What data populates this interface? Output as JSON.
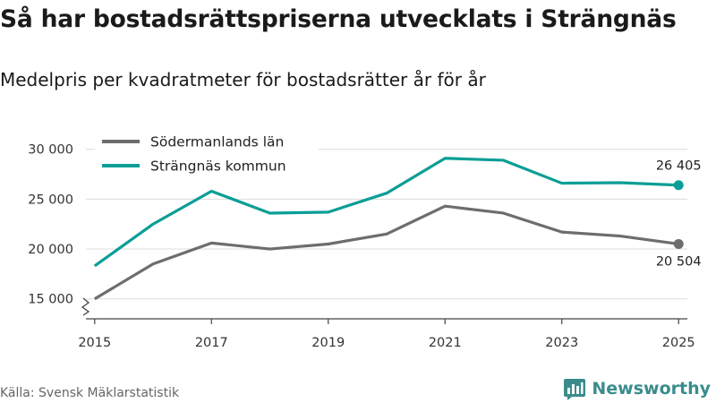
{
  "header": {
    "title": "Så har bostadsrättspriserna utvecklats i Strängnäs",
    "subtitle": "Medelpris per kvadratmeter för bostadsrätter år för år"
  },
  "footer": {
    "source": "Källa: Svensk Mäklarstatistik",
    "brand": "Newsworthy",
    "brand_icon": "bar-chart-logo-icon"
  },
  "chart_data": {
    "type": "line",
    "title": "Så har bostadsrättspriserna utvecklats i Strängnäs",
    "subtitle": "Medelpris per kvadratmeter för bostadsrätter år för år",
    "xlabel": "",
    "ylabel": "",
    "x": [
      2015,
      2016,
      2017,
      2018,
      2019,
      2020,
      2021,
      2022,
      2023,
      2024,
      2025
    ],
    "x_ticks": [
      2015,
      2017,
      2019,
      2021,
      2023,
      2025
    ],
    "x_tick_labels": [
      "2015",
      "2017",
      "2019",
      "2021",
      "2023",
      "2025"
    ],
    "y_ticks": [
      15000,
      20000,
      25000,
      30000
    ],
    "y_tick_labels": [
      "15 000",
      "20 000",
      "25 000",
      "30 000"
    ],
    "ylim": [
      13000,
      31500
    ],
    "xlim": [
      2014.85,
      2025.15
    ],
    "grid": true,
    "axis_break": true,
    "legend_position": "top-left",
    "series": [
      {
        "name": "Södermanlands län",
        "color": "#6d6d6d",
        "values": [
          15000,
          18500,
          20600,
          20000,
          20500,
          21500,
          24300,
          23600,
          21700,
          21300,
          20504
        ],
        "end_label": "20 504"
      },
      {
        "name": "Strängnäs kommun",
        "color": "#0b9e96",
        "values": [
          18300,
          22500,
          25800,
          23600,
          23700,
          25600,
          29100,
          28900,
          26600,
          26650,
          26405
        ],
        "end_label": "26 405"
      }
    ]
  }
}
